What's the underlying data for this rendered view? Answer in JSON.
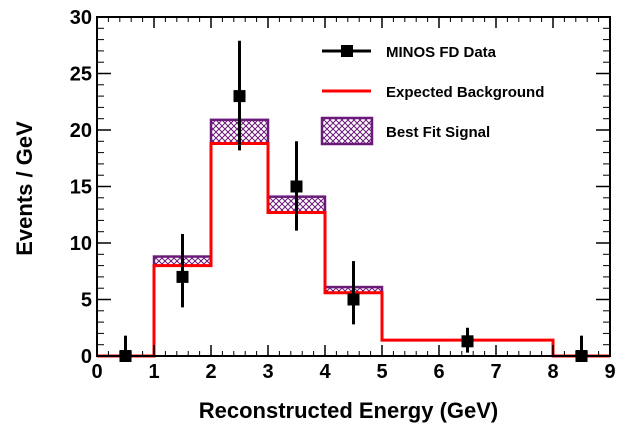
{
  "chart_data": {
    "type": "histogram",
    "xlabel": "Reconstructed Energy (GeV)",
    "ylabel": "Events / GeV",
    "xlim": [
      0,
      9
    ],
    "ylim": [
      0,
      30
    ],
    "x_ticks": [
      "0",
      "1",
      "2",
      "3",
      "4",
      "5",
      "6",
      "7",
      "8",
      "9"
    ],
    "y_ticks": [
      "0",
      "5",
      "10",
      "15",
      "20",
      "25",
      "30"
    ],
    "grid": false,
    "legend_position": "top-right",
    "bin_edges": [
      0,
      1,
      2,
      3,
      4,
      5,
      6,
      7,
      8,
      9
    ],
    "series": [
      {
        "name": "MINOS FD Data",
        "kind": "points-with-errors",
        "color": "#000000",
        "x": [
          0.5,
          1.5,
          2.5,
          3.5,
          4.5,
          6.5,
          8.5
        ],
        "y": [
          0,
          7,
          23,
          15,
          5,
          1.3,
          0
        ],
        "y_err_low": [
          0,
          2.7,
          4.8,
          3.9,
          2.2,
          1.0,
          0
        ],
        "y_err_high": [
          1.8,
          3.8,
          4.9,
          4.0,
          3.4,
          1.2,
          1.8
        ]
      },
      {
        "name": "Expected Background",
        "kind": "step",
        "color": "#ff0000",
        "values": [
          0,
          8,
          18.8,
          12.7,
          5.6,
          1.4,
          1.4,
          1.4,
          0
        ]
      },
      {
        "name": "Best Fit Signal",
        "kind": "hatched-band",
        "color": "#6b1a7a",
        "lower": [
          0,
          8,
          18.8,
          12.7,
          5.6,
          1.4,
          1.4,
          1.4,
          0
        ],
        "upper": [
          0,
          8.8,
          20.9,
          14.1,
          6.1,
          1.4,
          1.4,
          1.4,
          0
        ]
      }
    ]
  }
}
